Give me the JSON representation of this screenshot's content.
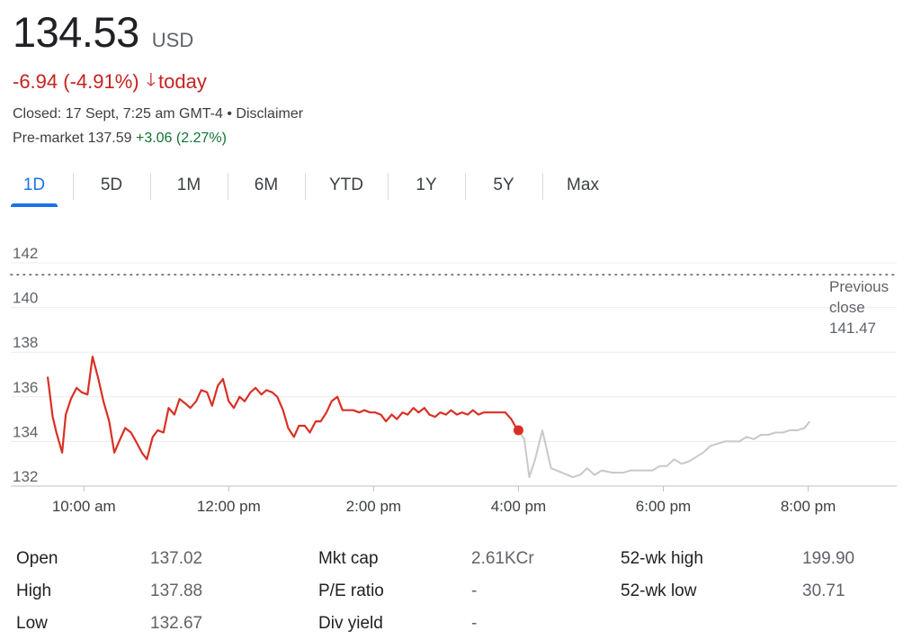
{
  "header": {
    "price": "134.53",
    "currency": "USD",
    "change_text": "-6.94 (-4.91%)",
    "change_suffix": "today",
    "status": "Closed: 17 Sept, 7:25 am GMT-4 • Disclaimer",
    "premarket_label": "Pre-market 137.59",
    "premarket_change": "+3.06 (2.27%)"
  },
  "tabs": [
    "1D",
    "5D",
    "1M",
    "6M",
    "YTD",
    "1Y",
    "5Y",
    "Max"
  ],
  "active_tab": "1D",
  "previous_close": {
    "line1": "Previous",
    "line2": "close",
    "value": "141.47"
  },
  "colors": {
    "session": "#d93025",
    "after_hours": "#c8c8c8",
    "active_tab": "#1a73e8",
    "negative": "#c5221f",
    "positive": "#137333"
  },
  "chart_data": {
    "type": "line",
    "title": "",
    "xlabel": "",
    "ylabel": "",
    "ylim": [
      132,
      142
    ],
    "yticks": [
      132,
      134,
      136,
      138,
      140,
      142
    ],
    "xticks": [
      {
        "value": 10,
        "label": "10:00 am"
      },
      {
        "value": 12,
        "label": "12:00 pm"
      },
      {
        "value": 14,
        "label": "2:00 pm"
      },
      {
        "value": 16,
        "label": "4:00 pm"
      },
      {
        "value": 18,
        "label": "6:00 pm"
      },
      {
        "value": 20,
        "label": "8:00 pm"
      }
    ],
    "xlim_hours": [
      9.5,
      20.08
    ],
    "grid": true,
    "previous_close": 141.47,
    "series": [
      {
        "segment": "regular",
        "x": [
          9.5,
          9.57,
          9.62,
          9.7,
          9.75,
          9.82,
          9.9,
          9.97,
          10.05,
          10.12,
          10.2,
          10.27,
          10.35,
          10.42,
          10.5,
          10.57,
          10.65,
          10.72,
          10.8,
          10.87,
          10.95,
          11.02,
          11.1,
          11.17,
          11.25,
          11.32,
          11.4,
          11.47,
          11.55,
          11.62,
          11.7,
          11.77,
          11.85,
          11.92,
          12.0,
          12.07,
          12.15,
          12.22,
          12.3,
          12.37,
          12.45,
          12.52,
          12.6,
          12.67,
          12.75,
          12.82,
          12.9,
          12.97,
          13.05,
          13.12,
          13.2,
          13.27,
          13.35,
          13.42,
          13.5,
          13.57,
          13.65,
          13.72,
          13.8,
          13.87,
          13.95,
          14.02,
          14.1,
          14.17,
          14.25,
          14.32,
          14.4,
          14.47,
          14.55,
          14.62,
          14.7,
          14.77,
          14.85,
          14.92,
          15.0,
          15.07,
          15.15,
          15.22,
          15.3,
          15.37,
          15.45,
          15.52,
          15.6,
          15.67,
          15.75,
          15.82,
          15.9,
          15.97,
          16.0
        ],
        "y": [
          136.9,
          135.1,
          134.4,
          133.5,
          135.2,
          135.9,
          136.4,
          136.2,
          136.1,
          137.8,
          136.8,
          135.8,
          134.9,
          133.5,
          134.1,
          134.6,
          134.4,
          134.0,
          133.5,
          133.2,
          134.2,
          134.5,
          134.4,
          135.5,
          135.2,
          135.9,
          135.7,
          135.5,
          135.8,
          136.3,
          136.2,
          135.6,
          136.5,
          136.8,
          135.8,
          135.5,
          136.0,
          135.8,
          136.2,
          136.4,
          136.1,
          136.3,
          136.2,
          136.0,
          135.4,
          134.6,
          134.2,
          134.7,
          134.7,
          134.4,
          134.9,
          134.9,
          135.3,
          135.8,
          136.0,
          135.4,
          135.4,
          135.4,
          135.3,
          135.4,
          135.3,
          135.3,
          135.2,
          134.9,
          135.2,
          135.0,
          135.3,
          135.2,
          135.5,
          135.3,
          135.5,
          135.2,
          135.1,
          135.3,
          135.2,
          135.4,
          135.2,
          135.3,
          135.2,
          135.4,
          135.2,
          135.3,
          135.3,
          135.3,
          135.3,
          135.3,
          135.0,
          134.6,
          134.5
        ]
      },
      {
        "segment": "after_hours",
        "x": [
          16.0,
          16.08,
          16.15,
          16.23,
          16.33,
          16.45,
          16.6,
          16.75,
          16.85,
          16.95,
          17.05,
          17.15,
          17.3,
          17.45,
          17.55,
          17.7,
          17.85,
          17.95,
          18.05,
          18.15,
          18.25,
          18.35,
          18.45,
          18.55,
          18.65,
          18.75,
          18.85,
          18.95,
          19.05,
          19.15,
          19.25,
          19.35,
          19.45,
          19.55,
          19.65,
          19.75,
          19.85,
          19.95,
          20.02
        ],
        "y": [
          134.5,
          134.1,
          132.4,
          133.2,
          134.5,
          132.8,
          132.6,
          132.4,
          132.5,
          132.8,
          132.5,
          132.7,
          132.6,
          132.6,
          132.7,
          132.7,
          132.7,
          132.9,
          132.9,
          133.2,
          133.0,
          133.1,
          133.3,
          133.5,
          133.8,
          133.9,
          134.0,
          134.0,
          134.0,
          134.2,
          134.1,
          134.3,
          134.3,
          134.4,
          134.4,
          134.5,
          134.5,
          134.6,
          134.9
        ]
      }
    ]
  },
  "stats": [
    {
      "label": "Open",
      "value": "137.02"
    },
    {
      "label": "High",
      "value": "137.88"
    },
    {
      "label": "Low",
      "value": "132.67"
    },
    {
      "label": "Mkt cap",
      "value": "2.61KCr"
    },
    {
      "label": "P/E ratio",
      "value": "-"
    },
    {
      "label": "Div yield",
      "value": "-"
    },
    {
      "label": "52-wk high",
      "value": "199.90"
    },
    {
      "label": "52-wk low",
      "value": "30.71"
    }
  ]
}
